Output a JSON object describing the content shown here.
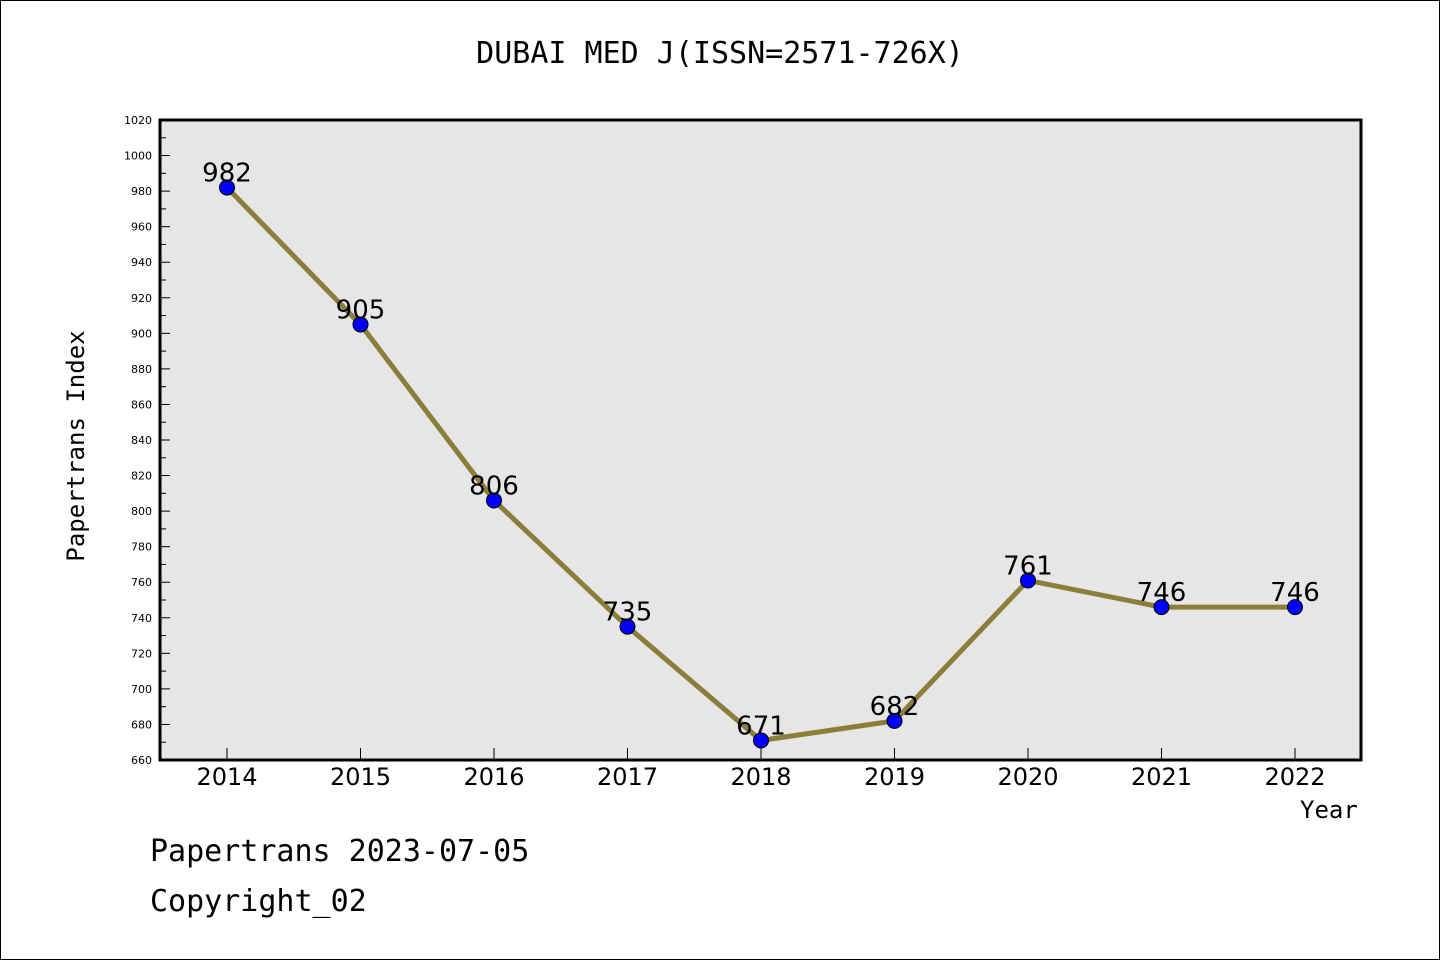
{
  "chart_data": {
    "type": "line",
    "title": "DUBAI MED J(ISSN=2571-726X)",
    "xlabel": "Year",
    "ylabel": "Papertrans Index",
    "categories": [
      "2014",
      "2015",
      "2016",
      "2017",
      "2018",
      "2019",
      "2020",
      "2021",
      "2022"
    ],
    "series": [
      {
        "values": [
          982,
          905,
          806,
          735,
          671,
          682,
          761,
          746,
          746
        ]
      }
    ],
    "ylim": [
      660,
      1020
    ],
    "ytick_step": 20,
    "grid": false,
    "line_color": "#8B7D3A",
    "marker_color": "#0000FF",
    "plot_background": "#E6E6E6"
  },
  "footer": {
    "line1": "Papertrans 2023-07-05",
    "line2": "Copyright_02"
  }
}
